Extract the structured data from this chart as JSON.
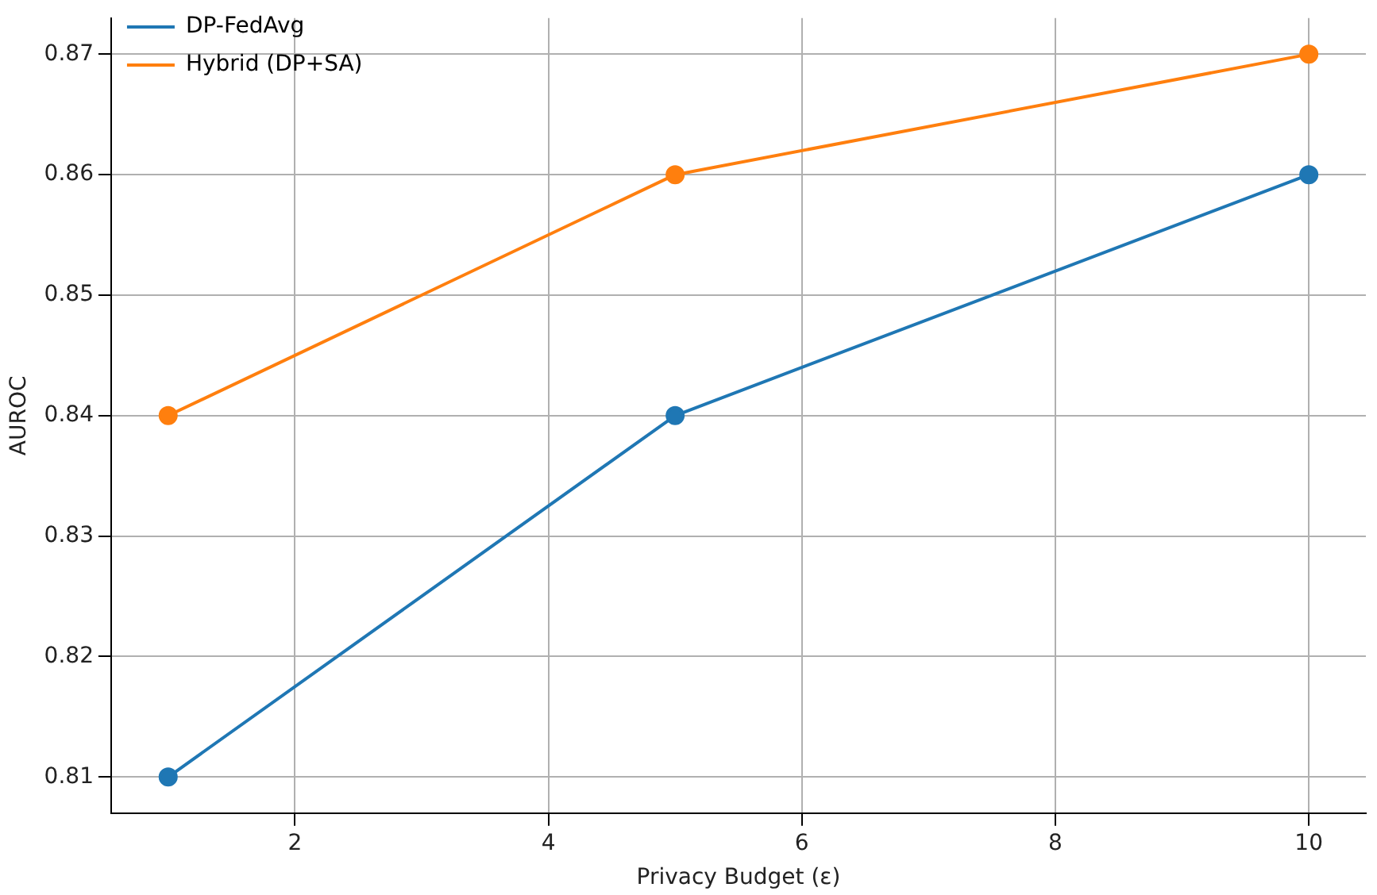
{
  "chart_data": {
    "type": "line",
    "xlabel": "Privacy Budget (ε)",
    "ylabel": "AUROC",
    "x": [
      1,
      5,
      10
    ],
    "series": [
      {
        "name": "DP-FedAvg",
        "color": "#1f77b4",
        "values": [
          0.81,
          0.84,
          0.86
        ]
      },
      {
        "name": "Hybrid (DP+SA)",
        "color": "#ff7f0e",
        "values": [
          0.84,
          0.86,
          0.87
        ]
      }
    ],
    "xlim": [
      0.55,
      10.45
    ],
    "xticks": [
      2,
      4,
      6,
      8,
      10
    ],
    "ylim": [
      0.807,
      0.873
    ],
    "yticks": [
      0.81,
      0.82,
      0.83,
      0.84,
      0.85,
      0.86,
      0.87
    ],
    "grid": true,
    "legend": "top left",
    "marker": "circle",
    "line_style": "solid"
  }
}
